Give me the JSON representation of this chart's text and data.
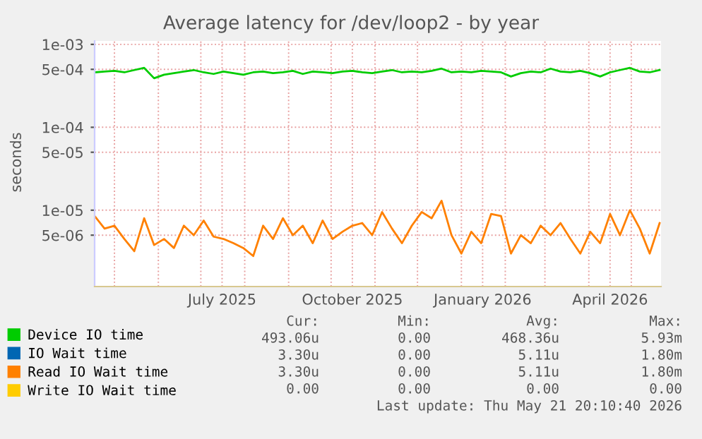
{
  "chart_data": {
    "type": "line",
    "title": "Average latency for /dev/loop2 - by year",
    "ylabel": "seconds",
    "log": true,
    "grid": true,
    "legend": "bottom",
    "xlim": [
      "2025-04-17",
      "2026-05-22"
    ],
    "ylim": [
      1.2e-06,
      0.0011
    ],
    "yticks": [
      {
        "value": 0.001,
        "label": "1e-03"
      },
      {
        "value": 0.0005,
        "label": "5e-04"
      },
      {
        "value": 0.0001,
        "label": "1e-04"
      },
      {
        "value": 5e-05,
        "label": "5e-05"
      },
      {
        "value": 1e-05,
        "label": "1e-05"
      },
      {
        "value": 5e-06,
        "label": "5e-06"
      }
    ],
    "xticks": [
      {
        "value": "2025-05-01",
        "label": null
      },
      {
        "value": "2025-06-01",
        "label": null
      },
      {
        "value": "2025-07-01",
        "label": null
      },
      {
        "value": "2025-07-16",
        "label": "July 2025"
      },
      {
        "value": "2025-08-01",
        "label": null
      },
      {
        "value": "2025-09-01",
        "label": null
      },
      {
        "value": "2025-10-01",
        "label": null
      },
      {
        "value": "2025-10-16",
        "label": "October 2025"
      },
      {
        "value": "2025-11-01",
        "label": null
      },
      {
        "value": "2025-12-01",
        "label": null
      },
      {
        "value": "2026-01-01",
        "label": null
      },
      {
        "value": "2026-01-16",
        "label": "January 2026"
      },
      {
        "value": "2026-02-01",
        "label": null
      },
      {
        "value": "2026-03-01",
        "label": null
      },
      {
        "value": "2026-04-01",
        "label": null
      },
      {
        "value": "2026-04-16",
        "label": "April 2026"
      },
      {
        "value": "2026-05-01",
        "label": null
      }
    ],
    "x": [
      "2025-04-17",
      "2025-04-24",
      "2025-05-01",
      "2025-05-08",
      "2025-05-15",
      "2025-05-22",
      "2025-05-29",
      "2025-06-05",
      "2025-06-12",
      "2025-06-19",
      "2025-06-26",
      "2025-07-03",
      "2025-07-10",
      "2025-07-17",
      "2025-07-24",
      "2025-07-31",
      "2025-08-07",
      "2025-08-14",
      "2025-08-21",
      "2025-08-28",
      "2025-09-04",
      "2025-09-11",
      "2025-09-18",
      "2025-09-25",
      "2025-10-02",
      "2025-10-09",
      "2025-10-16",
      "2025-10-23",
      "2025-10-30",
      "2025-11-06",
      "2025-11-13",
      "2025-11-20",
      "2025-11-27",
      "2025-12-04",
      "2025-12-11",
      "2025-12-18",
      "2025-12-25",
      "2026-01-01",
      "2026-01-08",
      "2026-01-15",
      "2026-01-22",
      "2026-01-29",
      "2026-02-05",
      "2026-02-12",
      "2026-02-19",
      "2026-02-26",
      "2026-03-05",
      "2026-03-12",
      "2026-03-19",
      "2026-03-26",
      "2026-04-02",
      "2026-04-09",
      "2026-04-16",
      "2026-04-23",
      "2026-04-30",
      "2026-05-07",
      "2026-05-14",
      "2026-05-21"
    ],
    "series": [
      {
        "name": "Device IO time",
        "color": "#00cc00",
        "values": [
          0.00046,
          0.00047,
          0.00048,
          0.00046,
          0.00049,
          0.00052,
          0.00039,
          0.00043,
          0.00045,
          0.00047,
          0.00049,
          0.00046,
          0.00044,
          0.00047,
          0.00045,
          0.00043,
          0.00046,
          0.00047,
          0.00045,
          0.00046,
          0.00048,
          0.00044,
          0.00047,
          0.00046,
          0.00045,
          0.00047,
          0.00048,
          0.00046,
          0.00045,
          0.00047,
          0.00049,
          0.00046,
          0.00047,
          0.00046,
          0.00048,
          0.00051,
          0.00046,
          0.00047,
          0.00046,
          0.00048,
          0.00047,
          0.00046,
          0.00041,
          0.00045,
          0.00047,
          0.00046,
          0.00051,
          0.00047,
          0.00046,
          0.00048,
          0.00045,
          0.00041,
          0.00046,
          0.00049,
          0.00052,
          0.00047,
          0.00046,
          0.00049
        ]
      },
      {
        "name": "IO Wait time",
        "color": "#0066b3",
        "values": [
          null,
          null,
          null,
          null,
          null,
          null,
          null,
          null,
          null,
          null,
          null,
          null,
          null,
          null,
          null,
          null,
          null,
          null,
          null,
          null,
          null,
          null,
          null,
          null,
          null,
          null,
          null,
          null,
          null,
          null,
          null,
          null,
          null,
          null,
          null,
          null,
          null,
          null,
          null,
          null,
          null,
          null,
          null,
          null,
          null,
          null,
          null,
          null,
          null,
          null,
          null,
          null,
          null,
          null,
          null,
          null,
          null,
          null
        ]
      },
      {
        "name": "Read IO Wait time",
        "color": "#ff8000",
        "values": [
          8.5e-06,
          6e-06,
          6.5e-06,
          4.5e-06,
          3.2e-06,
          8e-06,
          3.8e-06,
          4.5e-06,
          3.5e-06,
          6.5e-06,
          5e-06,
          7.5e-06,
          4.8e-06,
          4.5e-06,
          4e-06,
          3.5e-06,
          2.8e-06,
          6.5e-06,
          4.5e-06,
          8e-06,
          5e-06,
          6.5e-06,
          4e-06,
          7.5e-06,
          4.5e-06,
          5.5e-06,
          6.5e-06,
          7e-06,
          5e-06,
          9.5e-06,
          6e-06,
          4e-06,
          6.5e-06,
          9.5e-06,
          8e-06,
          1.3e-05,
          5e-06,
          3e-06,
          5.5e-06,
          4e-06,
          9e-06,
          8.5e-06,
          3e-06,
          5e-06,
          4e-06,
          6.5e-06,
          5e-06,
          7e-06,
          4.5e-06,
          3e-06,
          5.5e-06,
          4e-06,
          9e-06,
          5e-06,
          1e-05,
          6e-06,
          3e-06,
          7e-06
        ]
      },
      {
        "name": "Write IO Wait time",
        "color": "#ffcc00",
        "values": [
          null,
          null,
          null,
          null,
          null,
          null,
          null,
          null,
          null,
          null,
          null,
          null,
          null,
          null,
          null,
          null,
          null,
          null,
          null,
          null,
          null,
          null,
          null,
          null,
          null,
          null,
          null,
          null,
          null,
          null,
          null,
          null,
          null,
          null,
          null,
          null,
          null,
          null,
          null,
          null,
          null,
          null,
          null,
          null,
          null,
          null,
          null,
          null,
          null,
          null,
          null,
          null,
          null,
          null,
          null,
          null,
          null,
          null
        ]
      }
    ],
    "annotations": [
      "Cur:",
      "Min:",
      "Avg:",
      "Max:",
      "493.06u",
      "0.00",
      "468.36u",
      "5.93m",
      "3.30u",
      "0.00",
      "5.11u",
      "1.80m",
      "3.30u",
      "0.00",
      "5.11u",
      "1.80m",
      "0.00",
      "0.00",
      "0.00",
      "0.00",
      "Last update: Thu May 21 20:10:40 2026"
    ]
  }
}
